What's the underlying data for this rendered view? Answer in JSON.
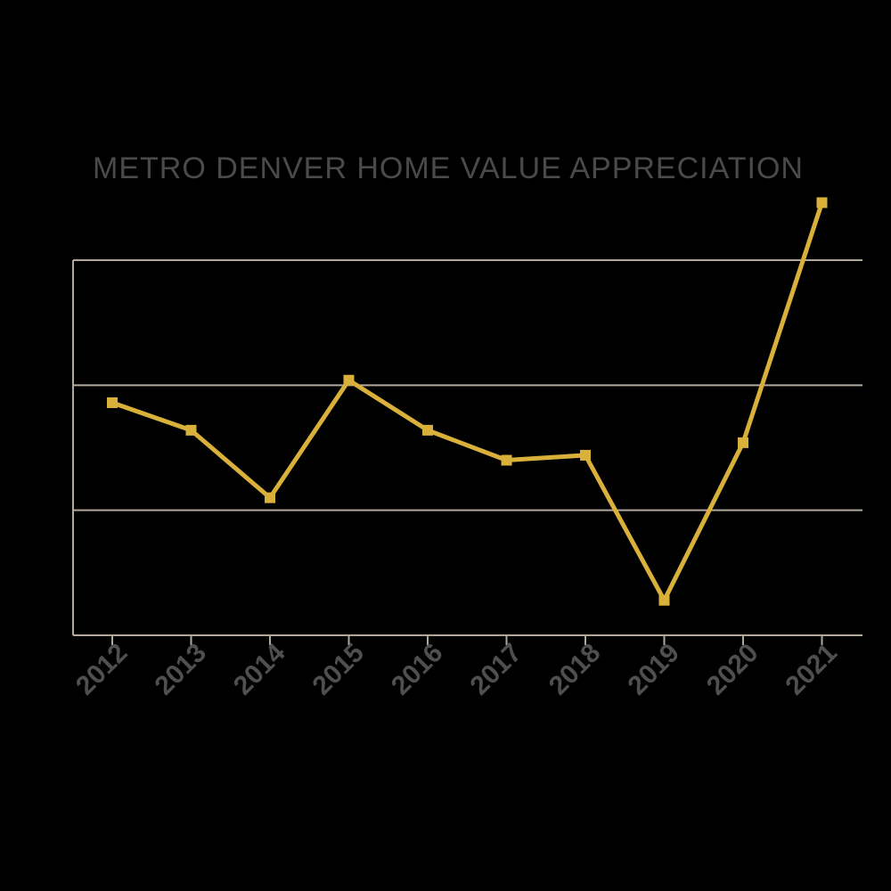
{
  "chart_data": {
    "type": "line",
    "title": "METRO DENVER HOME VALUE APPRECIATION",
    "xlabel": "",
    "ylabel": "",
    "categories": [
      "2012",
      "2013",
      "2014",
      "2015",
      "2016",
      "2017",
      "2018",
      "2019",
      "2020",
      "2021"
    ],
    "series": [
      {
        "values": [
          9.3,
          8.2,
          5.5,
          10.2,
          8.2,
          7.0,
          7.2,
          1.4,
          7.7,
          17.3
        ]
      }
    ],
    "ylim": [
      0,
      15
    ],
    "grid": true,
    "gridlines": [
      5,
      10,
      15
    ],
    "legend": "none",
    "colors": {
      "background": "#000000",
      "line": "#d9b03a",
      "grid": "#b3a89c",
      "axis": "#b3a89c",
      "title": "#4a4a4a",
      "tick_label": "#4f4f4f"
    }
  }
}
